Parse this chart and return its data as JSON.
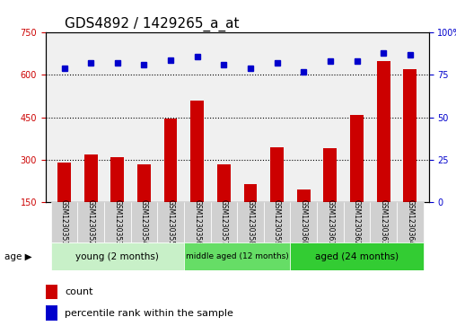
{
  "title": "GDS4892 / 1429265_a_at",
  "samples": [
    "GSM1230351",
    "GSM1230352",
    "GSM1230353",
    "GSM1230354",
    "GSM1230355",
    "GSM1230356",
    "GSM1230357",
    "GSM1230358",
    "GSM1230359",
    "GSM1230360",
    "GSM1230361",
    "GSM1230362",
    "GSM1230363",
    "GSM1230364"
  ],
  "counts": [
    290,
    320,
    310,
    285,
    445,
    510,
    285,
    215,
    345,
    195,
    340,
    460,
    650,
    620
  ],
  "percentile_ranks": [
    79,
    82,
    82,
    81,
    84,
    86,
    81,
    79,
    82,
    77,
    83,
    83,
    88,
    87
  ],
  "groups": [
    {
      "label": "young (2 months)",
      "start": 0,
      "end": 4,
      "color": "#c8f0c8"
    },
    {
      "label": "middle aged (12 months)",
      "start": 5,
      "end": 8,
      "color": "#66dd66"
    },
    {
      "label": "aged (24 months)",
      "start": 9,
      "end": 13,
      "color": "#33cc33"
    }
  ],
  "ylim_left": [
    150,
    750
  ],
  "ylim_right": [
    0,
    100
  ],
  "yticks_left": [
    150,
    300,
    450,
    600,
    750
  ],
  "yticks_right": [
    0,
    25,
    50,
    75,
    100
  ],
  "bar_color": "#cc0000",
  "dot_color": "#0000cc",
  "background_color": "#f0f0f0",
  "grid_color": "#000000",
  "title_fontsize": 11,
  "tick_fontsize": 7,
  "label_fontsize": 8
}
